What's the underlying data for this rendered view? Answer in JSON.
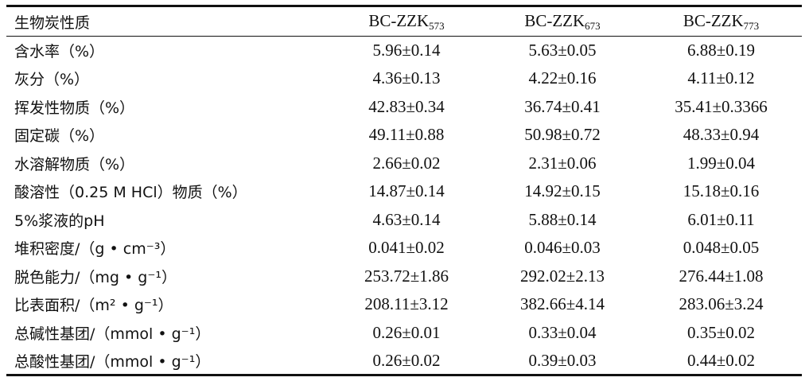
{
  "table": {
    "header": {
      "label": "生物炭性质",
      "columns": [
        {
          "base": "BC-ZZK",
          "sub": "573"
        },
        {
          "base": "BC-ZZK",
          "sub": "673"
        },
        {
          "base": "BC-ZZK",
          "sub": "773"
        }
      ]
    },
    "rows": [
      {
        "label": "含水率（%）",
        "values": [
          "5.96±0.14",
          "5.63±0.05",
          "6.88±0.19"
        ]
      },
      {
        "label": "灰分（%）",
        "values": [
          "4.36±0.13",
          "4.22±0.16",
          "4.11±0.12"
        ]
      },
      {
        "label": "挥发性物质（%）",
        "values": [
          "42.83±0.34",
          "36.74±0.41",
          "35.41±0.3366"
        ]
      },
      {
        "label": "固定碳（%）",
        "values": [
          "49.11±0.88",
          "50.98±0.72",
          "48.33±0.94"
        ]
      },
      {
        "label": "水溶解物质（%）",
        "values": [
          "2.66±0.02",
          "2.31±0.06",
          "1.99±0.04"
        ]
      },
      {
        "label": "酸溶性（0.25 M HCl）物质（%）",
        "values": [
          "14.87±0.14",
          "14.92±0.15",
          "15.18±0.16"
        ]
      },
      {
        "label": "5%浆液的pH",
        "values": [
          "4.63±0.14",
          "5.88±0.14",
          "6.01±0.11"
        ]
      },
      {
        "label": "堆积密度/（g • cm⁻³）",
        "values": [
          "0.041±0.02",
          "0.046±0.03",
          "0.048±0.05"
        ]
      },
      {
        "label": "脱色能力/（mg • g⁻¹）",
        "values": [
          "253.72±1.86",
          "292.02±2.13",
          "276.44±1.08"
        ]
      },
      {
        "label": "比表面积/（m² • g⁻¹）",
        "values": [
          "208.11±3.12",
          "382.66±4.14",
          "283.06±3.24"
        ]
      },
      {
        "label": "总碱性基团/（mmol • g⁻¹）",
        "values": [
          "0.26±0.01",
          "0.33±0.04",
          "0.35±0.02"
        ]
      },
      {
        "label": "总酸性基团/（mmol • g⁻¹）",
        "values": [
          "0.26±0.02",
          "0.39±0.03",
          "0.44±0.02"
        ]
      }
    ]
  }
}
